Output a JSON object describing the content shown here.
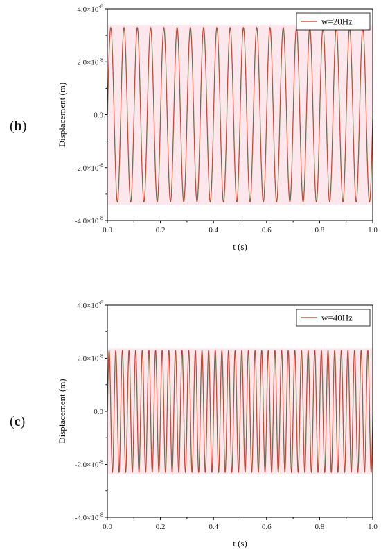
{
  "chart_data": [
    {
      "type": "line",
      "panel_label": "b",
      "xlabel": "t (s)",
      "ylabel": "Displacement (m)",
      "xlim": [
        0.0,
        1.0
      ],
      "ylim": [
        -4e-08,
        4e-08
      ],
      "x_ticks": [
        "0.0",
        "0.2",
        "0.4",
        "0.6",
        "0.8",
        "1.0"
      ],
      "y_ticks": [
        {
          "value": 4e-08,
          "mantissa": "4.0",
          "exp": "-8"
        },
        {
          "value": 2e-08,
          "mantissa": "2.0",
          "exp": "-8"
        },
        {
          "value": 0.0,
          "mantissa": "0.0",
          "exp": ""
        },
        {
          "value": -2e-08,
          "mantissa": "-2.0",
          "exp": "-8"
        },
        {
          "value": -4e-08,
          "mantissa": "-4.0",
          "exp": "-8"
        }
      ],
      "series": [
        {
          "name": "w=20Hz",
          "frequency_hz": 20,
          "amplitude": 3.3e-08,
          "color": "#c0392b"
        }
      ],
      "legend_position": "top-right",
      "grid": false
    },
    {
      "type": "line",
      "panel_label": "c",
      "xlabel": "t (s)",
      "ylabel": "Displacement (m)",
      "xlim": [
        0.0,
        1.0
      ],
      "ylim": [
        -4e-08,
        4e-08
      ],
      "x_ticks": [
        "0.0",
        "0.2",
        "0.4",
        "0.6",
        "0.8",
        "1.0"
      ],
      "y_ticks": [
        {
          "value": 4e-08,
          "mantissa": "4.0",
          "exp": "-8"
        },
        {
          "value": 2e-08,
          "mantissa": "2.0",
          "exp": "-8"
        },
        {
          "value": 0.0,
          "mantissa": "0.0",
          "exp": ""
        },
        {
          "value": -2e-08,
          "mantissa": "-2.0",
          "exp": "-8"
        },
        {
          "value": -4e-08,
          "mantissa": "-4.0",
          "exp": "-8"
        }
      ],
      "series": [
        {
          "name": "w=40Hz",
          "frequency_hz": 40,
          "amplitude": 2.3e-08,
          "color": "#c0392b"
        }
      ],
      "legend_position": "top-right",
      "grid": false
    }
  ]
}
